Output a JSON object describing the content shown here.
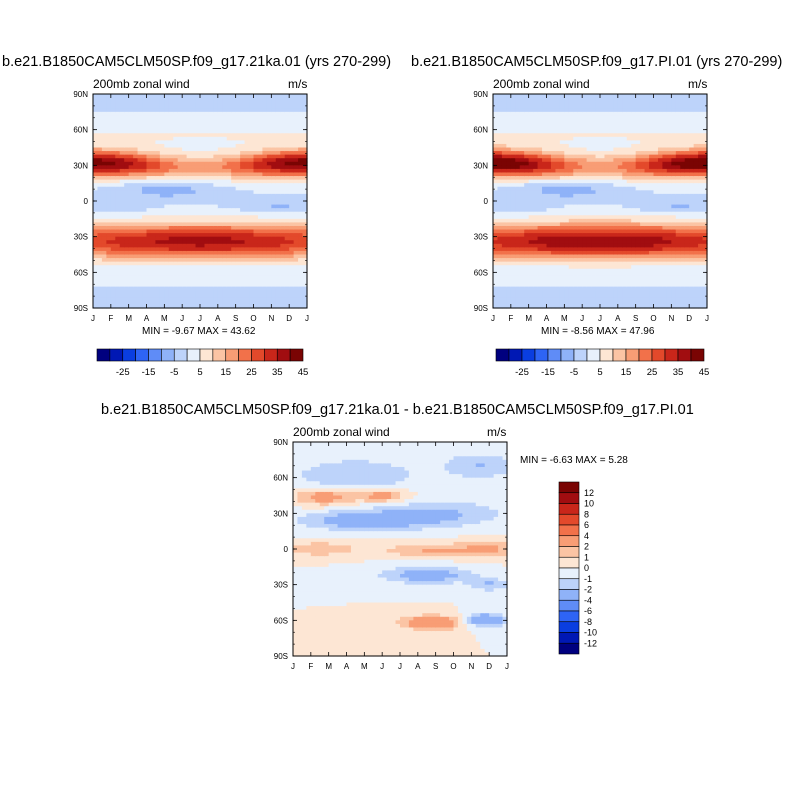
{
  "chart_data": [
    {
      "type": "heatmap",
      "title": "b.e21.B1850CAM5CLM50SP.f09_g17.21ka.01 (yrs 270-299)",
      "subtitle_left": "200mb zonal wind",
      "subtitle_right": "m/s",
      "x_ticks": [
        "J",
        "F",
        "M",
        "A",
        "M",
        "J",
        "J",
        "A",
        "S",
        "O",
        "N",
        "D",
        "J"
      ],
      "y_ticks": [
        "90N",
        "60N",
        "30N",
        "0",
        "30S",
        "60S",
        "90S"
      ],
      "stats": "MIN =  -9.67 MAX =  43.62",
      "zmin": -9.67,
      "zmax": 43.62,
      "colorbar_labels": [
        "-25",
        "-15",
        "-5",
        "5",
        "15",
        "25",
        "35",
        "45"
      ]
    },
    {
      "type": "heatmap",
      "title": "b.e21.B1850CAM5CLM50SP.f09_g17.PI.01 (yrs 270-299)",
      "subtitle_left": "200mb zonal wind",
      "subtitle_right": "m/s",
      "x_ticks": [
        "J",
        "F",
        "M",
        "A",
        "M",
        "J",
        "J",
        "A",
        "S",
        "O",
        "N",
        "D",
        "J"
      ],
      "y_ticks": [
        "90N",
        "60N",
        "30N",
        "0",
        "30S",
        "60S",
        "90S"
      ],
      "stats": "MIN =  -8.56 MAX =  47.96",
      "zmin": -8.56,
      "zmax": 47.96,
      "colorbar_labels": [
        "-25",
        "-15",
        "-5",
        "5",
        "15",
        "25",
        "35",
        "45"
      ]
    },
    {
      "type": "heatmap",
      "title": "b.e21.B1850CAM5CLM50SP.f09_g17.21ka.01 - b.e21.B1850CAM5CLM50SP.f09_g17.PI.01",
      "subtitle_left": "200mb zonal wind",
      "subtitle_right": "m/s",
      "x_ticks": [
        "J",
        "F",
        "M",
        "A",
        "M",
        "J",
        "J",
        "A",
        "S",
        "O",
        "N",
        "D",
        "J"
      ],
      "y_ticks": [
        "90N",
        "60N",
        "30N",
        "0",
        "30S",
        "60S",
        "90S"
      ],
      "stats": "MIN =  -6.63 MAX =   5.28",
      "zmin": -6.63,
      "zmax": 5.28,
      "colorbar_labels": [
        "12",
        "10",
        "8",
        "6",
        "4",
        "2",
        "1",
        "0",
        "-1",
        "-2",
        "-4",
        "-6",
        "-8",
        "-10",
        "-12"
      ]
    }
  ],
  "colors": {
    "full_scale": [
      "#00007f",
      "#0018b4",
      "#0a3ee0",
      "#2e64f5",
      "#5f8cf7",
      "#8fb2f8",
      "#bdd3fa",
      "#e8f1fc",
      "#fde6d4",
      "#fbc4a4",
      "#f89d75",
      "#f2714a",
      "#e3492b",
      "#c9261a",
      "#a10d10",
      "#7a0403"
    ],
    "diff_scale": [
      "#7a0403",
      "#a10d10",
      "#c9261a",
      "#e3492b",
      "#f2714a",
      "#f89d75",
      "#fbc4a4",
      "#fde6d4",
      "#e8f1fc",
      "#bdd3fa",
      "#8fb2f8",
      "#5f8cf7",
      "#2e64f5",
      "#0a3ee0",
      "#0018b4",
      "#00007f"
    ]
  }
}
